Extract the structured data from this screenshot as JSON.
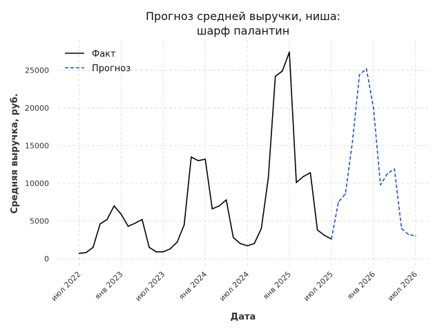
{
  "chart_data": {
    "type": "line",
    "title_lines": [
      "Прогноз средней выручки, ниша:",
      "шарф палантин"
    ],
    "xlabel": "Дата",
    "ylabel": "Средняя выручка, руб.",
    "x_ticks": [
      "2022-07",
      "2023-01",
      "2023-07",
      "2024-01",
      "2024-07",
      "2025-01",
      "2025-07",
      "2026-01",
      "2026-07"
    ],
    "x_tick_labels": [
      "июл 2022",
      "янв 2023",
      "июл 2023",
      "янв 2024",
      "июл 2024",
      "янв 2025",
      "июл 2025",
      "янв 2026",
      "июл 2026"
    ],
    "y_ticks": [
      0,
      5000,
      10000,
      15000,
      20000,
      25000
    ],
    "y_tick_labels": [
      "0",
      "5000",
      "10000",
      "15000",
      "20000",
      "25000"
    ],
    "xlim": [
      "2022-04",
      "2026-09"
    ],
    "ylim": [
      -1200,
      29000
    ],
    "grid": true,
    "legend_position": "top-left",
    "series": [
      {
        "name": "Факт",
        "color": "#000000",
        "style": "solid",
        "x": [
          "2022-07",
          "2022-08",
          "2022-09",
          "2022-10",
          "2022-11",
          "2022-12",
          "2023-01",
          "2023-02",
          "2023-03",
          "2023-04",
          "2023-05",
          "2023-06",
          "2023-07",
          "2023-08",
          "2023-09",
          "2023-10",
          "2023-11",
          "2023-12",
          "2024-01",
          "2024-02",
          "2024-03",
          "2024-04",
          "2024-05",
          "2024-06",
          "2024-07",
          "2024-08",
          "2024-09",
          "2024-10",
          "2024-11",
          "2024-12",
          "2025-01",
          "2025-02",
          "2025-03",
          "2025-04",
          "2025-05",
          "2025-06",
          "2025-07"
        ],
        "y": [
          700,
          800,
          1500,
          4600,
          5200,
          7000,
          5900,
          4300,
          4700,
          5200,
          1500,
          900,
          900,
          1300,
          2200,
          4500,
          13500,
          13000,
          13200,
          6600,
          7000,
          7800,
          2800,
          2000,
          1700,
          2000,
          4000,
          10700,
          24200,
          24900,
          27400,
          10100,
          10900,
          11400,
          3800,
          3100,
          2600
        ]
      },
      {
        "name": "Прогноз",
        "color": "#1f4fd1",
        "style": "dashed",
        "x": [
          "2025-07",
          "2025-08",
          "2025-09",
          "2025-10",
          "2025-11",
          "2025-12",
          "2026-01",
          "2026-02",
          "2026-03",
          "2026-04",
          "2026-05",
          "2026-06",
          "2026-07"
        ],
        "y": [
          2600,
          7500,
          8600,
          15500,
          24400,
          25200,
          20000,
          9800,
          11300,
          11900,
          4000,
          3200,
          3000
        ]
      }
    ]
  }
}
